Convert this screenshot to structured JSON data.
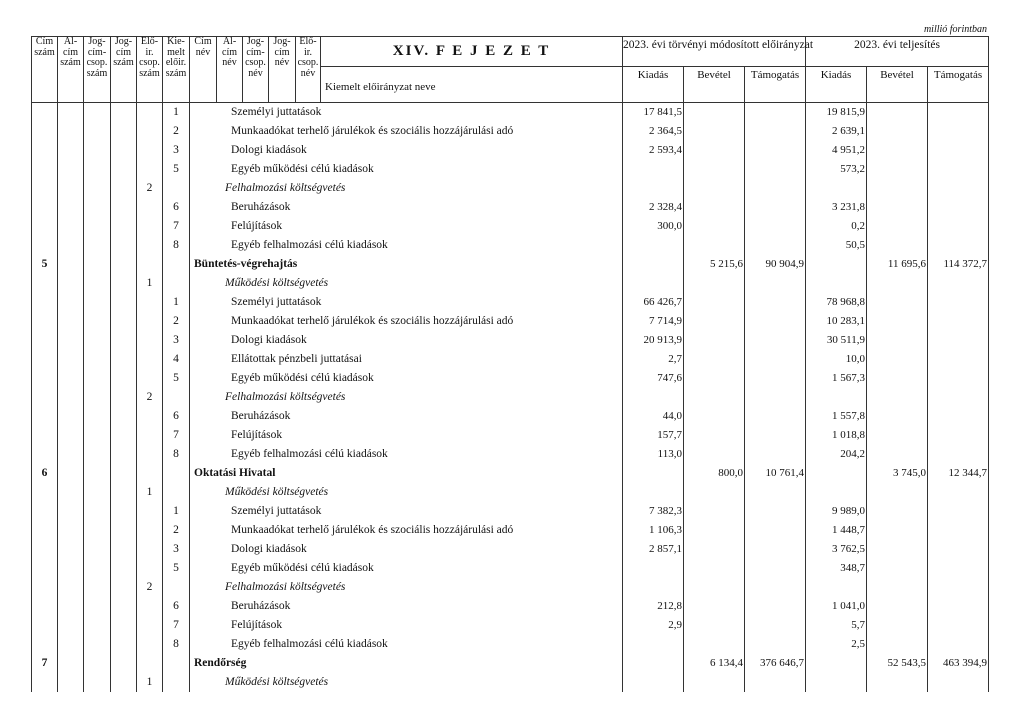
{
  "unit_note": "millió forintban",
  "header": {
    "chapter": "XIV. F E J E Z E T",
    "code_columns": [
      [
        "Cím",
        "szám"
      ],
      [
        "Al-",
        "cím",
        "szám"
      ],
      [
        "Jog-",
        "cím-",
        "csop.",
        "szám"
      ],
      [
        "Jog-",
        "cím",
        "szám"
      ],
      [
        "Elő-",
        "ir.",
        "csop.",
        "szám"
      ],
      [
        "Kie-",
        "melt",
        "előir.",
        "szám"
      ],
      [
        "Cím",
        "név"
      ],
      [
        "Al-",
        "cím",
        "név"
      ],
      [
        "Jog-",
        "cím-",
        "csop.",
        "név"
      ],
      [
        "Jog-",
        "cím",
        "név"
      ],
      [
        "Elő-",
        "ir.",
        "csop.",
        "név"
      ]
    ],
    "name_column": "Kiemelt előirányzat neve",
    "group1": "2023. évi törvényi módosított előirányzat",
    "group2": "2023. évi teljesítés",
    "sub": [
      "Kiadás",
      "Bevétel",
      "Támogatás",
      "Kiadás",
      "Bevétel",
      "Támogatás"
    ]
  },
  "rows": [
    {
      "type": "item",
      "cim": "",
      "csop": "",
      "kiemelt": "1",
      "name": "Személyi juttatások",
      "values": [
        "17 841,5",
        "",
        "",
        "19 815,9",
        "",
        ""
      ]
    },
    {
      "type": "item",
      "cim": "",
      "csop": "",
      "kiemelt": "2",
      "name": "Munkaadókat terhelő járulékok és szociális hozzájárulási adó",
      "values": [
        "2 364,5",
        "",
        "",
        "2 639,1",
        "",
        ""
      ]
    },
    {
      "type": "item",
      "cim": "",
      "csop": "",
      "kiemelt": "3",
      "name": "Dologi kiadások",
      "values": [
        "2 593,4",
        "",
        "",
        "4 951,2",
        "",
        ""
      ]
    },
    {
      "type": "item",
      "cim": "",
      "csop": "",
      "kiemelt": "5",
      "name": "Egyéb működési célú kiadások",
      "values": [
        "",
        "",
        "",
        "573,2",
        "",
        ""
      ]
    },
    {
      "type": "sect",
      "cim": "",
      "csop": "2",
      "kiemelt": "",
      "name": "Felhalmozási költségvetés",
      "values": [
        "",
        "",
        "",
        "",
        "",
        ""
      ]
    },
    {
      "type": "item",
      "cim": "",
      "csop": "",
      "kiemelt": "6",
      "name": "Beruházások",
      "values": [
        "2 328,4",
        "",
        "",
        "3 231,8",
        "",
        ""
      ]
    },
    {
      "type": "item",
      "cim": "",
      "csop": "",
      "kiemelt": "7",
      "name": "Felújítások",
      "values": [
        "300,0",
        "",
        "",
        "0,2",
        "",
        ""
      ]
    },
    {
      "type": "item",
      "cim": "",
      "csop": "",
      "kiemelt": "8",
      "name": "Egyéb felhalmozási célú kiadások",
      "values": [
        "",
        "",
        "",
        "50,5",
        "",
        ""
      ]
    },
    {
      "type": "bold",
      "cim": "5",
      "csop": "",
      "kiemelt": "",
      "name": "Büntetés-végrehajtás",
      "values": [
        "",
        "5 215,6",
        "90 904,9",
        "",
        "11 695,6",
        "114 372,7"
      ]
    },
    {
      "type": "sect",
      "cim": "",
      "csop": "1",
      "kiemelt": "",
      "name": "Működési költségvetés",
      "values": [
        "",
        "",
        "",
        "",
        "",
        ""
      ]
    },
    {
      "type": "item",
      "cim": "",
      "csop": "",
      "kiemelt": "1",
      "name": "Személyi juttatások",
      "values": [
        "66 426,7",
        "",
        "",
        "78 968,8",
        "",
        ""
      ]
    },
    {
      "type": "item",
      "cim": "",
      "csop": "",
      "kiemelt": "2",
      "name": "Munkaadókat terhelő járulékok és szociális hozzájárulási adó",
      "values": [
        "7 714,9",
        "",
        "",
        "10 283,1",
        "",
        ""
      ]
    },
    {
      "type": "item",
      "cim": "",
      "csop": "",
      "kiemelt": "3",
      "name": "Dologi kiadások",
      "values": [
        "20 913,9",
        "",
        "",
        "30 511,9",
        "",
        ""
      ]
    },
    {
      "type": "item",
      "cim": "",
      "csop": "",
      "kiemelt": "4",
      "name": "Ellátottak pénzbeli juttatásai",
      "values": [
        "2,7",
        "",
        "",
        "10,0",
        "",
        ""
      ]
    },
    {
      "type": "item",
      "cim": "",
      "csop": "",
      "kiemelt": "5",
      "name": "Egyéb működési célú kiadások",
      "values": [
        "747,6",
        "",
        "",
        "1 567,3",
        "",
        ""
      ]
    },
    {
      "type": "sect",
      "cim": "",
      "csop": "2",
      "kiemelt": "",
      "name": "Felhalmozási költségvetés",
      "values": [
        "",
        "",
        "",
        "",
        "",
        ""
      ]
    },
    {
      "type": "item",
      "cim": "",
      "csop": "",
      "kiemelt": "6",
      "name": "Beruházások",
      "values": [
        "44,0",
        "",
        "",
        "1 557,8",
        "",
        ""
      ]
    },
    {
      "type": "item",
      "cim": "",
      "csop": "",
      "kiemelt": "7",
      "name": "Felújítások",
      "values": [
        "157,7",
        "",
        "",
        "1 018,8",
        "",
        ""
      ]
    },
    {
      "type": "item",
      "cim": "",
      "csop": "",
      "kiemelt": "8",
      "name": "Egyéb felhalmozási célú kiadások",
      "values": [
        "113,0",
        "",
        "",
        "204,2",
        "",
        ""
      ]
    },
    {
      "type": "bold",
      "cim": "6",
      "csop": "",
      "kiemelt": "",
      "name": "Oktatási Hivatal",
      "values": [
        "",
        "800,0",
        "10 761,4",
        "",
        "3 745,0",
        "12 344,7"
      ]
    },
    {
      "type": "sect",
      "cim": "",
      "csop": "1",
      "kiemelt": "",
      "name": "Működési költségvetés",
      "values": [
        "",
        "",
        "",
        "",
        "",
        ""
      ]
    },
    {
      "type": "item",
      "cim": "",
      "csop": "",
      "kiemelt": "1",
      "name": "Személyi juttatások",
      "values": [
        "7 382,3",
        "",
        "",
        "9 989,0",
        "",
        ""
      ]
    },
    {
      "type": "item",
      "cim": "",
      "csop": "",
      "kiemelt": "2",
      "name": "Munkaadókat terhelő járulékok és szociális hozzájárulási adó",
      "values": [
        "1 106,3",
        "",
        "",
        "1 448,7",
        "",
        ""
      ]
    },
    {
      "type": "item",
      "cim": "",
      "csop": "",
      "kiemelt": "3",
      "name": "Dologi kiadások",
      "values": [
        "2 857,1",
        "",
        "",
        "3 762,5",
        "",
        ""
      ]
    },
    {
      "type": "item",
      "cim": "",
      "csop": "",
      "kiemelt": "5",
      "name": "Egyéb működési célú kiadások",
      "values": [
        "",
        "",
        "",
        "348,7",
        "",
        ""
      ]
    },
    {
      "type": "sect",
      "cim": "",
      "csop": "2",
      "kiemelt": "",
      "name": "Felhalmozási költségvetés",
      "values": [
        "",
        "",
        "",
        "",
        "",
        ""
      ]
    },
    {
      "type": "item",
      "cim": "",
      "csop": "",
      "kiemelt": "6",
      "name": "Beruházások",
      "values": [
        "212,8",
        "",
        "",
        "1 041,0",
        "",
        ""
      ]
    },
    {
      "type": "item",
      "cim": "",
      "csop": "",
      "kiemelt": "7",
      "name": "Felújítások",
      "values": [
        "2,9",
        "",
        "",
        "5,7",
        "",
        ""
      ]
    },
    {
      "type": "item",
      "cim": "",
      "csop": "",
      "kiemelt": "8",
      "name": "Egyéb felhalmozási célú kiadások",
      "values": [
        "",
        "",
        "",
        "2,5",
        "",
        ""
      ]
    },
    {
      "type": "bold",
      "cim": "7",
      "csop": "",
      "kiemelt": "",
      "name": "Rendőrség",
      "values": [
        "",
        "6 134,4",
        "376 646,7",
        "",
        "52 543,5",
        "463 394,9"
      ]
    },
    {
      "type": "sect",
      "cim": "",
      "csop": "1",
      "kiemelt": "",
      "name": "Működési költségvetés",
      "values": [
        "",
        "",
        "",
        "",
        "",
        ""
      ]
    }
  ]
}
